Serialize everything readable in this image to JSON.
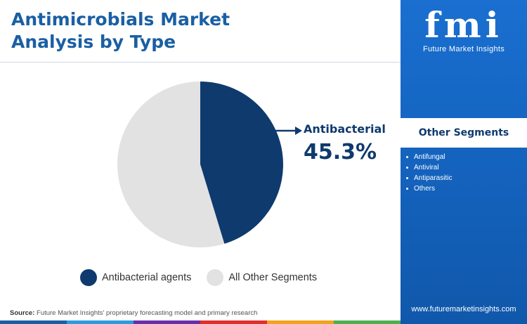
{
  "header": {
    "title_line1": "Antimicrobials Market",
    "title_line2": "Analysis by Type"
  },
  "chart_data": {
    "type": "pie",
    "title": "Antimicrobials Market Analysis by Type",
    "slices": [
      {
        "name": "Antibacterial agents",
        "value": 45.3,
        "color": "#0e3a6e"
      },
      {
        "name": "All Other Segments",
        "value": 54.7,
        "color": "#e2e2e2"
      }
    ],
    "callout": {
      "label": "Antibacterial",
      "value": "45.3%"
    },
    "legend_placement": "bottom"
  },
  "legend": {
    "items": [
      {
        "label": "Antibacterial agents",
        "color": "#0e3a6e"
      },
      {
        "label": "All Other Segments",
        "color": "#e2e2e2"
      }
    ]
  },
  "footer": {
    "source_label": "Source:",
    "source_text": " Future Market Insights' proprietary forecasting model and primary research",
    "bar_colors": [
      "#1a5fa3",
      "#2e9be0",
      "#6a2ea8",
      "#e0302e",
      "#f2a31f",
      "#4caf50"
    ]
  },
  "sidebar": {
    "logo_text": "fmi",
    "logo_subtitle": "Future Market Insights",
    "segments_title": "Other Segments",
    "segments": [
      "Antifungal",
      "Antiviral",
      "Antiparasitic",
      "Others"
    ],
    "website": "www.futuremarketinsights.com",
    "background_color": "#1565c0"
  }
}
